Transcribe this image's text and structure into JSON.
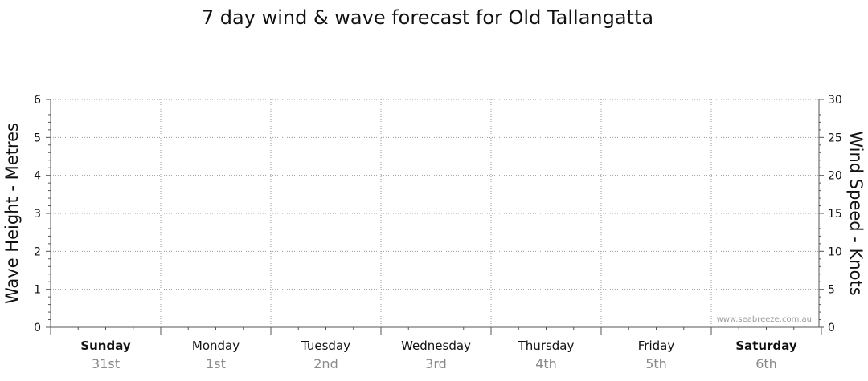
{
  "chart_data": {
    "type": "line",
    "title": "7 day wind & wave forecast for Old Tallangatta",
    "ylabel_left": "Wave Height - Metres",
    "ylabel_right": "Wind Speed - Knots",
    "ylim_left": [
      0,
      6
    ],
    "ylim_right": [
      0,
      30
    ],
    "yticks_left": [
      "0",
      "1",
      "2",
      "3",
      "4",
      "5",
      "6"
    ],
    "yticks_right": [
      "0",
      "5",
      "10",
      "15",
      "20",
      "25",
      "30"
    ],
    "grid": true,
    "days": [
      {
        "name": "Sunday",
        "date": "31st",
        "bold": true
      },
      {
        "name": "Monday",
        "date": "1st",
        "bold": false
      },
      {
        "name": "Tuesday",
        "date": "2nd",
        "bold": false
      },
      {
        "name": "Wednesday",
        "date": "3rd",
        "bold": false
      },
      {
        "name": "Thursday",
        "date": "4th",
        "bold": false
      },
      {
        "name": "Friday",
        "date": "5th",
        "bold": false
      },
      {
        "name": "Saturday",
        "date": "6th",
        "bold": true
      }
    ],
    "series": [],
    "watermark": "www.seabreeze.com.au"
  },
  "colors": {
    "grid": "#9a9a9a",
    "axis": "#555555",
    "text": "#111111",
    "date_text": "#8a8a8a"
  }
}
